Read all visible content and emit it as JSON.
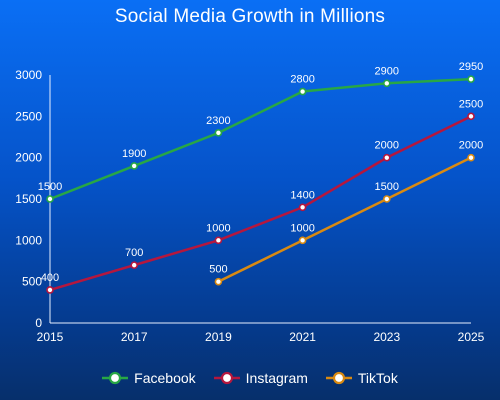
{
  "chart_data": {
    "type": "line",
    "title": "Social Media Growth in Millions",
    "xlabel": "",
    "ylabel": "",
    "x": [
      "2015",
      "2017",
      "2019",
      "2021",
      "2023",
      "2025"
    ],
    "y_ticks": [
      "0",
      "500",
      "1000",
      "1500",
      "2000",
      "2500",
      "3000"
    ],
    "ylim": [
      0,
      3000
    ],
    "grid": false,
    "legend_position": "bottom",
    "series": [
      {
        "name": "Facebook",
        "color": "#28a745",
        "values": [
          1500,
          1900,
          2300,
          2800,
          2900,
          2950
        ],
        "labels": [
          "1500",
          "1900",
          "2300",
          "2800",
          "2900",
          "2950"
        ]
      },
      {
        "name": "Instagram",
        "color": "#b5173e",
        "values": [
          400,
          700,
          1000,
          1400,
          2000,
          2500
        ],
        "labels": [
          "400",
          "700",
          "1000",
          "1400",
          "2000",
          "2500"
        ]
      },
      {
        "name": "TikTok",
        "color": "#d98a12",
        "values": [
          null,
          null,
          500,
          1000,
          1500,
          2000
        ],
        "labels": [
          "",
          "",
          "500",
          "1000",
          "1500",
          "2000"
        ]
      }
    ]
  }
}
